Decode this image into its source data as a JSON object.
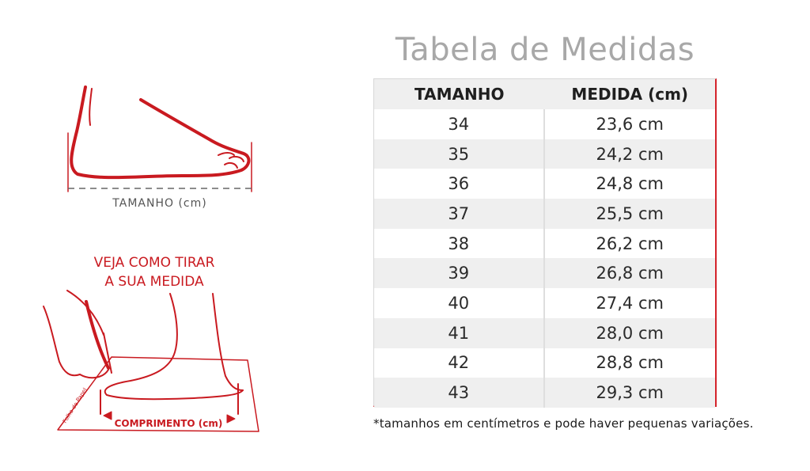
{
  "title": "Tabela de Medidas",
  "table": {
    "headers": [
      "TAMANHO",
      "MEDIDA (cm)"
    ],
    "rows": [
      {
        "size": "34",
        "measure": "23,6 cm"
      },
      {
        "size": "35",
        "measure": "24,2 cm"
      },
      {
        "size": "36",
        "measure": "24,8 cm"
      },
      {
        "size": "37",
        "measure": "25,5 cm"
      },
      {
        "size": "38",
        "measure": "26,2 cm"
      },
      {
        "size": "39",
        "measure": "26,8 cm"
      },
      {
        "size": "40",
        "measure": "27,4 cm"
      },
      {
        "size": "41",
        "measure": "28,0 cm"
      },
      {
        "size": "42",
        "measure": "28,8 cm"
      },
      {
        "size": "43",
        "measure": "29,3 cm"
      }
    ]
  },
  "footnote": "*tamanhos em centímetros e pode haver pequenas variações.",
  "illustration_foot": {
    "label": "TAMANHO (cm)"
  },
  "illustration_measure": {
    "instruction_line1": "VEJA COMO TIRAR",
    "instruction_line2": "A SUA MEDIDA",
    "paper_label": "Folha de Papel",
    "length_label": "COMPRIMENTO (cm)"
  },
  "colors": {
    "accent_red": "#c91a20",
    "title_gray": "#a8a8a8",
    "row_shade": "#efefef"
  }
}
